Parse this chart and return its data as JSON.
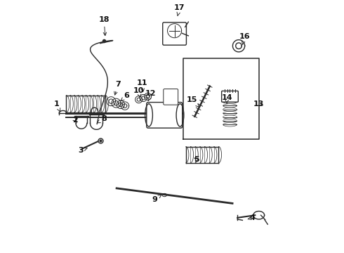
{
  "bg_color": "#ffffff",
  "line_color": "#2a2a2a",
  "label_color": "#111111",
  "labels_arrows": {
    "18": [
      0.23,
      0.925,
      0.235,
      0.85
    ],
    "17": [
      0.53,
      0.97,
      0.52,
      0.93
    ],
    "16": [
      0.788,
      0.858,
      0.778,
      0.815
    ],
    "15": [
      0.58,
      0.605,
      0.615,
      0.57
    ],
    "14": [
      0.718,
      0.615,
      0.718,
      0.59
    ],
    "13": [
      0.845,
      0.59,
      0.87,
      0.58
    ],
    "12": [
      0.416,
      0.63,
      0.405,
      0.6
    ],
    "11": [
      0.382,
      0.672,
      0.385,
      0.635
    ],
    "10": [
      0.368,
      0.642,
      0.375,
      0.605
    ],
    "9": [
      0.43,
      0.21,
      0.46,
      0.23
    ],
    "8": [
      0.23,
      0.53,
      0.2,
      0.513
    ],
    "7": [
      0.285,
      0.668,
      0.27,
      0.615
    ],
    "6": [
      0.32,
      0.622,
      0.295,
      0.6
    ],
    "5": [
      0.598,
      0.37,
      0.58,
      0.38
    ],
    "4": [
      0.82,
      0.138,
      0.8,
      0.132
    ],
    "3": [
      0.138,
      0.405,
      0.165,
      0.415
    ],
    "2": [
      0.115,
      0.525,
      0.128,
      0.513
    ],
    "1": [
      0.042,
      0.588,
      0.06,
      0.55
    ]
  }
}
